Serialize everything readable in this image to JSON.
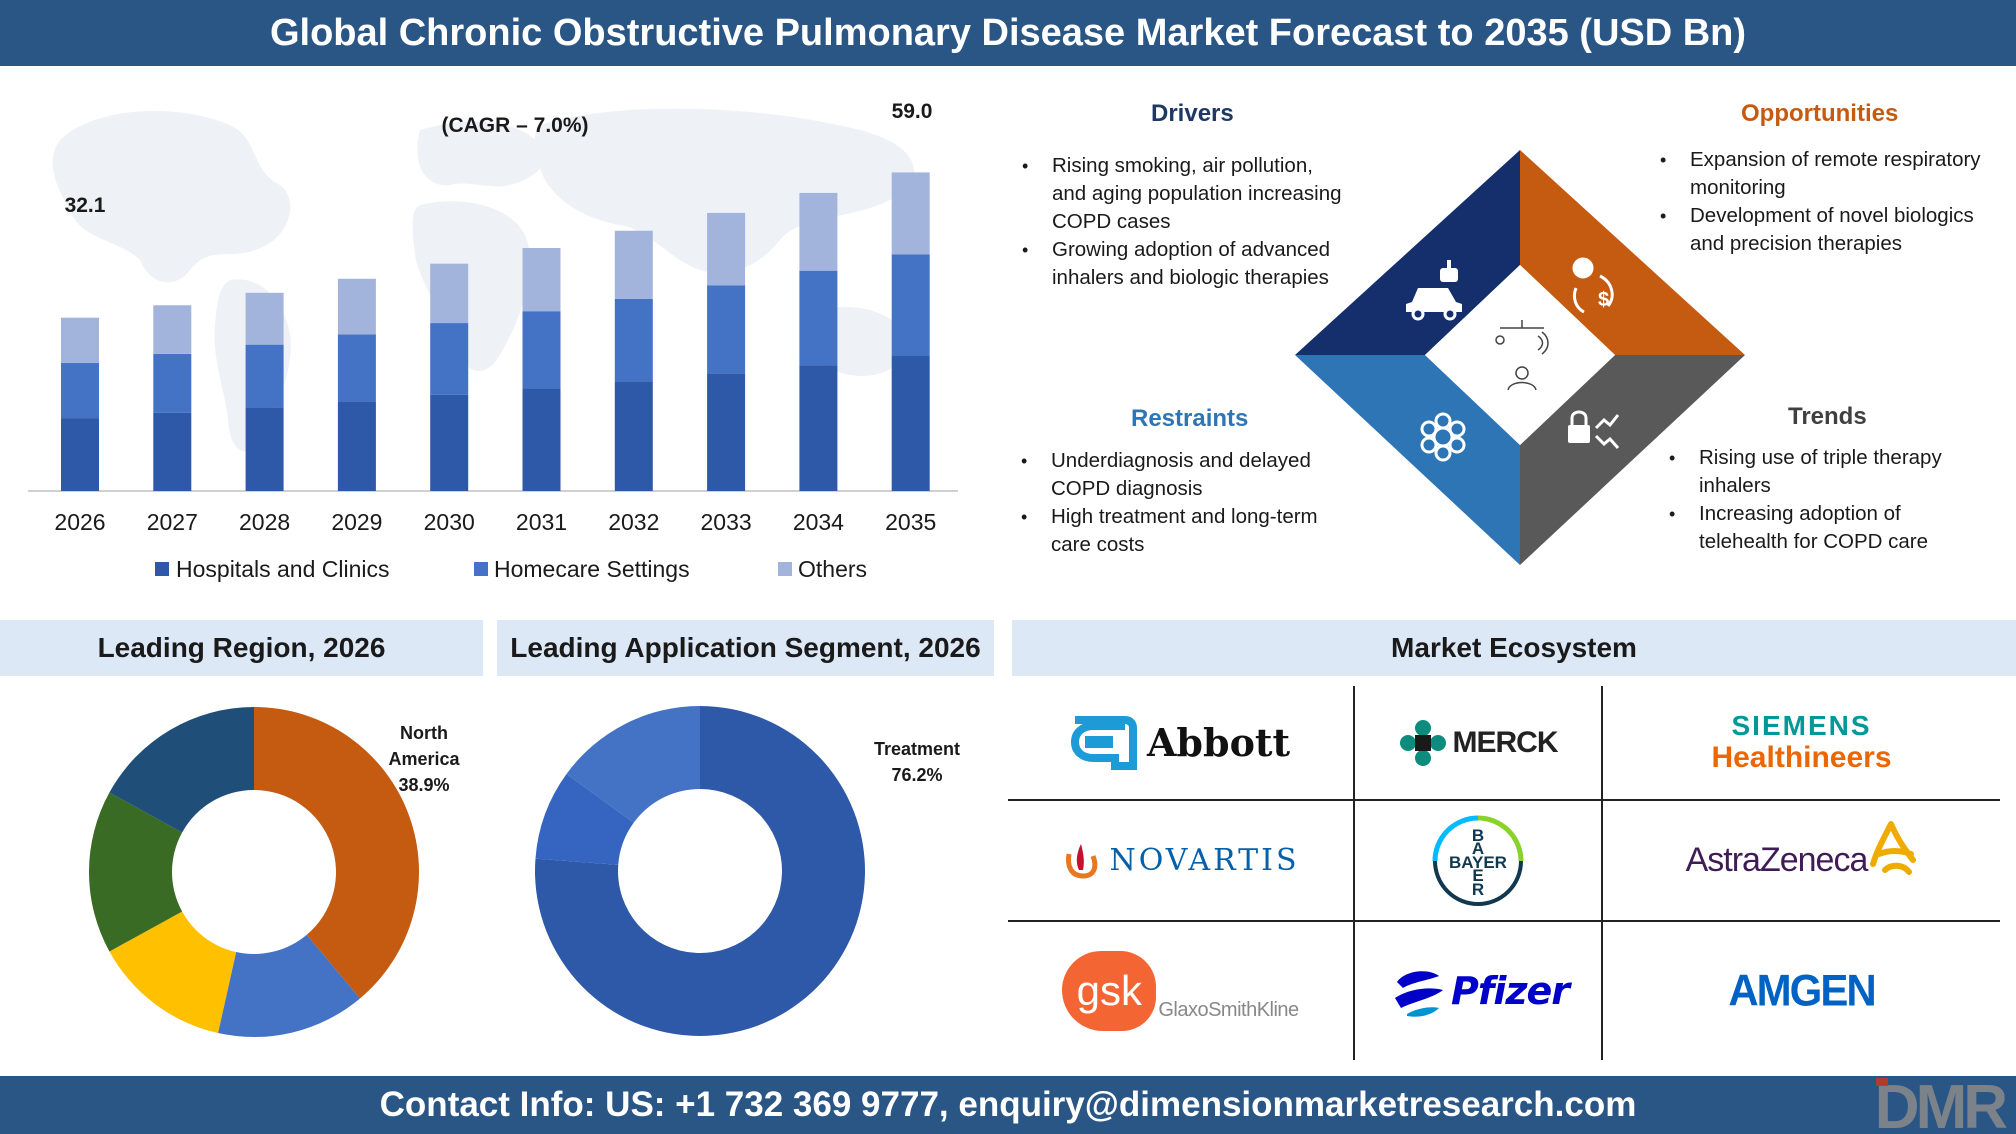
{
  "header": {
    "title": "Global Chronic Obstructive Pulmonary Disease Market Forecast to 2035 (USD Bn)"
  },
  "footer": {
    "contact": "Contact Info: US: +1 732 369 9777, enquiry@dimensionmarketresearch.com",
    "logo_text": "DMR"
  },
  "colors": {
    "header_bg": "#2a5686",
    "hospitals": "#2e59a8",
    "homecare": "#4472c4",
    "others": "#a3b4dc"
  },
  "chart_data": [
    {
      "type": "bar",
      "stacked": true,
      "categories": [
        "2026",
        "2027",
        "2028",
        "2029",
        "2030",
        "2031",
        "2032",
        "2033",
        "2034",
        "2035"
      ],
      "series": [
        {
          "name": "Hospitals and Clinics",
          "values": [
            13.5,
            14.5,
            15.5,
            16.6,
            17.8,
            19.0,
            20.3,
            21.8,
            23.3,
            25.0
          ]
        },
        {
          "name": "Homecare Settings",
          "values": [
            10.2,
            10.9,
            11.6,
            12.4,
            13.3,
            14.3,
            15.3,
            16.3,
            17.5,
            18.8
          ]
        },
        {
          "name": "Others",
          "values": [
            8.4,
            9.0,
            9.6,
            10.3,
            11.0,
            11.7,
            12.6,
            13.4,
            14.4,
            15.2
          ]
        }
      ],
      "totals_labels": {
        "2026": "32.1",
        "2035": "59.0"
      },
      "annotation": "(CAGR – 7.0%)",
      "ylim": [
        0,
        65
      ],
      "legend_position": "bottom",
      "grid": false
    },
    {
      "type": "pie",
      "donut": true,
      "title": "Leading Region, 2026",
      "slices": [
        {
          "name": "North America",
          "value": 38.9,
          "color": "#c55a11"
        },
        {
          "name": "",
          "value": 14.6,
          "color": "#4472c4"
        },
        {
          "name": "",
          "value": 13.5,
          "color": "#ffc000"
        },
        {
          "name": "",
          "value": 16.0,
          "color": "#3a6b25"
        },
        {
          "name": "",
          "value": 17.0,
          "color": "#1f4e79"
        }
      ],
      "label": {
        "name": "North America",
        "value": "38.9%"
      }
    },
    {
      "type": "pie",
      "donut": true,
      "title": "Leading Application Segment, 2026",
      "slices": [
        {
          "name": "Treatment",
          "value": 76.2,
          "color": "#2e59a8"
        },
        {
          "name": "",
          "value": 8.8,
          "color": "#3565c0"
        },
        {
          "name": "",
          "value": 15.0,
          "color": "#4472c4"
        }
      ],
      "label": {
        "name": "Treatment",
        "value": "76.2%"
      }
    }
  ],
  "dro": {
    "drivers": {
      "title": "Drivers",
      "color": "#1f3864",
      "icon": "car-robot-icon",
      "items": [
        "Rising smoking, air pollution, and aging population increasing COPD cases",
        "Growing adoption of advanced inhalers and biologic therapies"
      ]
    },
    "opportunities": {
      "title": "Opportunities",
      "color": "#c55a11",
      "icon": "idea-dollar-icon",
      "items": [
        "Expansion of remote respiratory monitoring",
        "Development of novel biologics and precision therapies"
      ]
    },
    "restraints": {
      "title": "Restraints",
      "color": "#2e75b6",
      "icon": "gear-flower-icon",
      "items": [
        "Underdiagnosis and delayed COPD diagnosis",
        "High treatment and long-term care costs"
      ]
    },
    "trends": {
      "title": "Trends",
      "color": "#595959",
      "icon": "lock-trend-icon",
      "items": [
        "Rising use of triple therapy inhalers",
        "Increasing adoption of telehealth for COPD care"
      ]
    },
    "diamond_colors": {
      "top_left": "#142f6b",
      "top_right": "#c55a11",
      "bottom_left": "#2e75b6",
      "bottom_right": "#595959"
    }
  },
  "sections": {
    "region": "Leading Region, 2026",
    "application": "Leading Application Segment, 2026",
    "ecosystem": "Market Ecosystem"
  },
  "ecosystem": {
    "abbott": "Abbott",
    "merck": "MERCK",
    "siemens_1": "SIEMENS",
    "siemens_2": "Healthineers",
    "novartis": "NOVARTIS",
    "bayer": "BAYER",
    "astrazeneca": "AstraZeneca",
    "gsk_mark": "gsk",
    "gsk_name": "GlaxoSmithKline",
    "pfizer": "Pfizer",
    "amgen": "AMGEN"
  }
}
